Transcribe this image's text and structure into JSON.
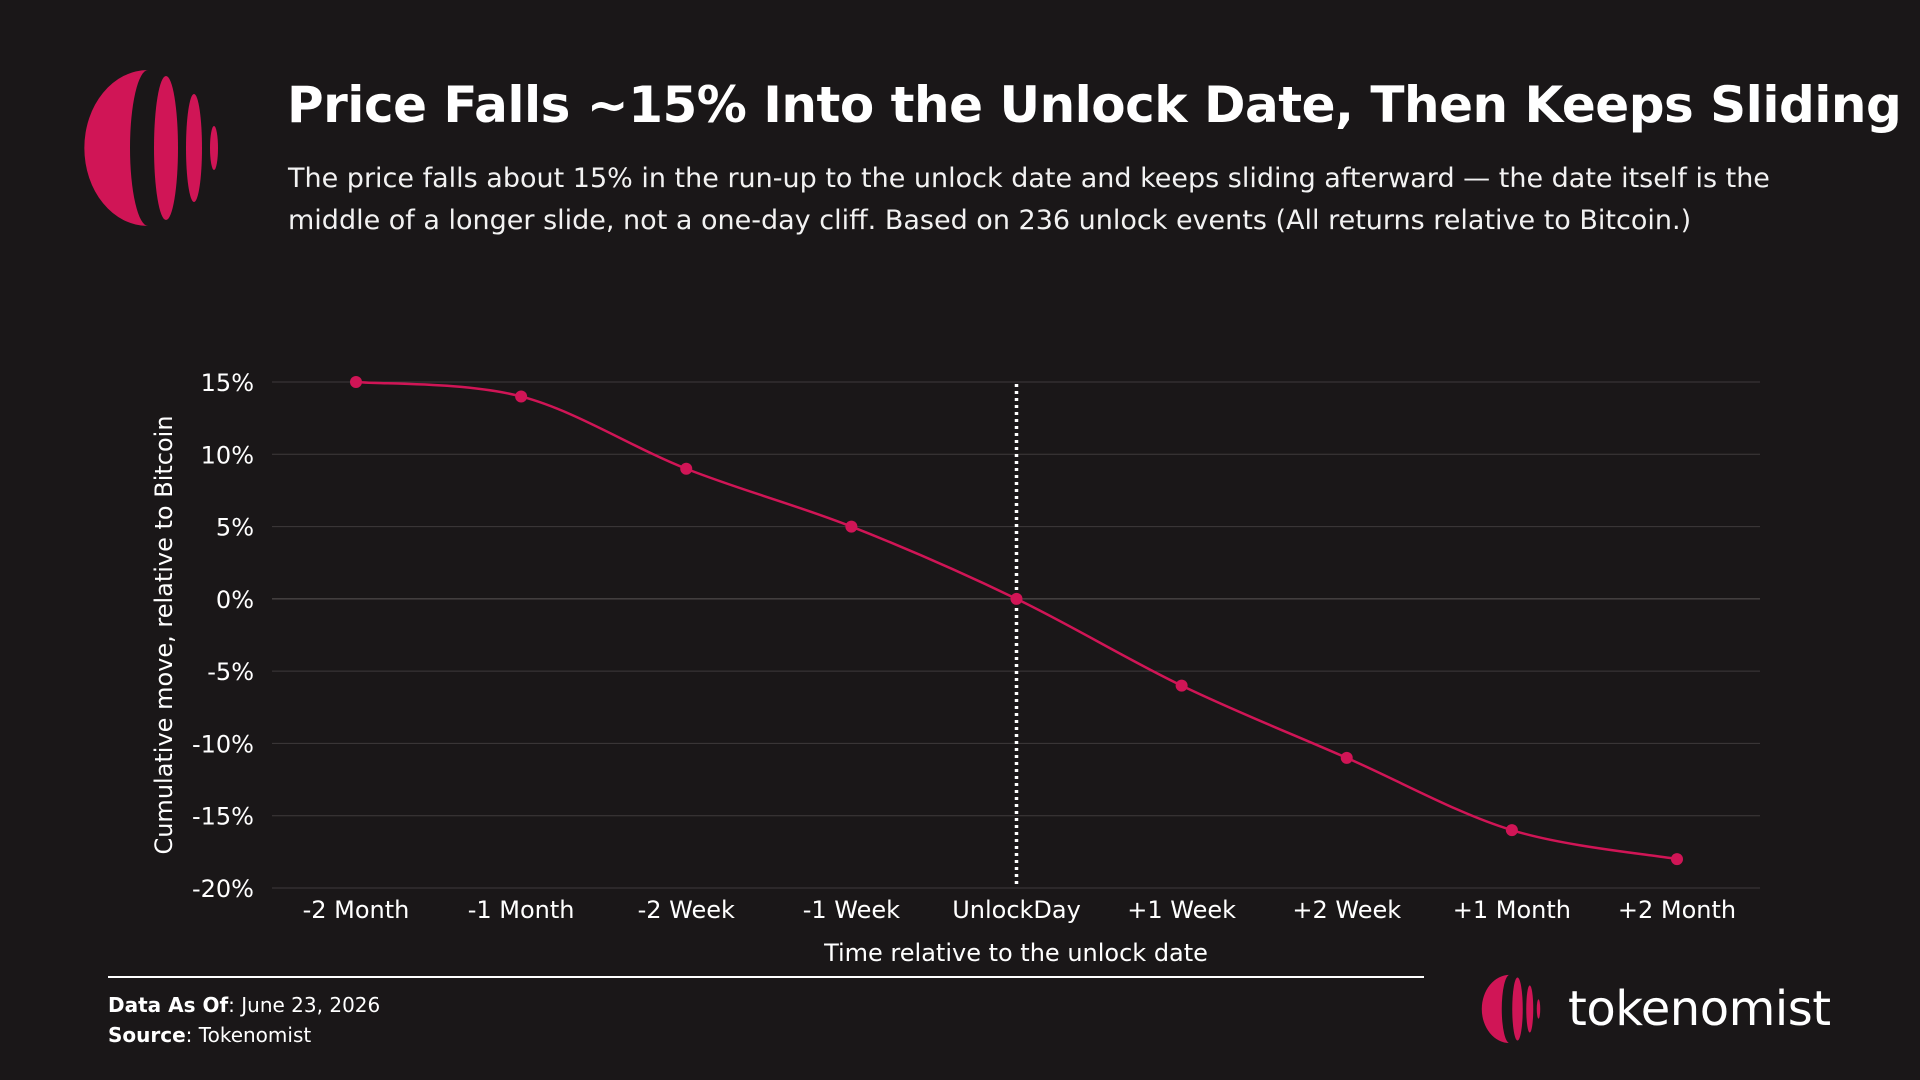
{
  "header": {
    "title": "Price Falls ~15% Into the Unlock Date, Then Keeps Sliding",
    "subtitle": "The price falls about 15% in the run-up to the unlock date and keeps sliding afterward — the date itself is the middle of a longer slide, not a one-day cliff. Based on 236 unlock events (All returns relative to Bitcoin.)"
  },
  "colors": {
    "background": "#1a1718",
    "accent": "#d01556",
    "grid": "#3e3a3b",
    "text": "#ffffff"
  },
  "chart_data": {
    "type": "line",
    "xlabel": "Time relative to the unlock date",
    "ylabel": "Cumulative move, relative to Bitcoin",
    "categories": [
      "-2 Month",
      "-1 Month",
      "-2 Week",
      "-1 Week",
      "UnlockDay",
      "+1 Week",
      "+2 Week",
      "+1 Month",
      "+2 Month"
    ],
    "series": [
      {
        "values": [
          15,
          14,
          9,
          5,
          0,
          -6,
          -11,
          -16,
          -18
        ]
      }
    ],
    "ylim": [
      -20,
      15
    ],
    "yticks": [
      15,
      10,
      5,
      0,
      -5,
      -10,
      -15,
      -20
    ],
    "ytick_labels": [
      "15%",
      "10%",
      "5%",
      "0%",
      "-5%",
      "-10%",
      "-15%",
      "-20%"
    ],
    "grid": true,
    "reference_line": {
      "category": "UnlockDay",
      "style": "dotted"
    },
    "marker": "circle",
    "smooth": true
  },
  "footer": {
    "data_as_of_label": "Data As Of",
    "data_as_of_value": ": June 23, 2026",
    "source_label": "Source",
    "source_value": ": Tokenomist"
  },
  "brand": {
    "name": "tokenomist",
    "logo_icon": "tokenomist-logo-icon"
  }
}
